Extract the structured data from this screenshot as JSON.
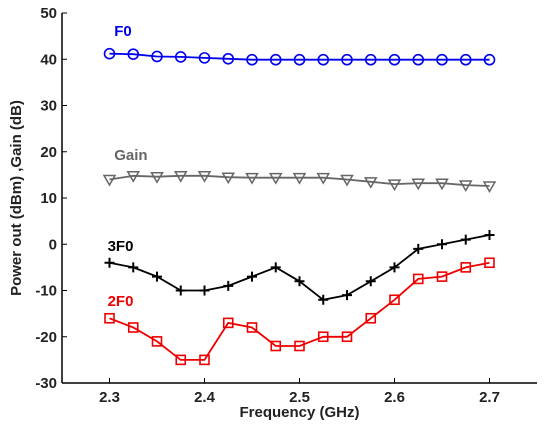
{
  "chart_data": {
    "type": "line",
    "xlabel": "Frequency (GHz)",
    "ylabel": "Power out (dBm) ,Gain (dB)",
    "xlim": [
      2.25,
      2.75
    ],
    "ylim": [
      -30,
      50
    ],
    "x_ticks": [
      "2.3",
      "2.4",
      "2.5",
      "2.6",
      "2.7"
    ],
    "y_ticks": [
      "-30",
      "-20",
      "-10",
      "0",
      "10",
      "20",
      "30",
      "40",
      "50"
    ],
    "grid": false,
    "x": [
      2.3,
      2.325,
      2.35,
      2.375,
      2.4,
      2.425,
      2.45,
      2.475,
      2.5,
      2.525,
      2.55,
      2.575,
      2.6,
      2.625,
      2.65,
      2.675,
      2.7
    ],
    "series": [
      {
        "name": "F0",
        "color": "#0000ee",
        "marker": "circle",
        "values": [
          41.2,
          41.1,
          40.6,
          40.5,
          40.3,
          40.1,
          39.9,
          39.9,
          39.9,
          39.9,
          39.9,
          39.9,
          39.9,
          39.9,
          39.9,
          39.9,
          39.9
        ],
        "label_at": [
          2.305,
          45
        ]
      },
      {
        "name": "Gain",
        "color": "#666666",
        "marker": "triangle-down",
        "values": [
          14,
          14.8,
          14.6,
          14.8,
          14.8,
          14.5,
          14.4,
          14.4,
          14.4,
          14.4,
          14.0,
          13.5,
          13.0,
          13.2,
          13.2,
          12.8,
          12.6
        ],
        "label_at": [
          2.305,
          18.2
        ]
      },
      {
        "name": "3F0",
        "color": "#000000",
        "marker": "plus",
        "values": [
          -4,
          -5,
          -7,
          -10,
          -10,
          -9,
          -7,
          -5,
          -8,
          -12,
          -11,
          -8,
          -5,
          -1,
          0,
          1,
          2
        ],
        "label_at": [
          2.298,
          -1.5
        ]
      },
      {
        "name": "2F0",
        "color": "#ee0000",
        "marker": "square",
        "values": [
          -16,
          -18,
          -21,
          -25,
          -25,
          -17,
          -18,
          -22,
          -22,
          -20,
          -20,
          -16,
          -12,
          -7.5,
          -7,
          -5,
          -4
        ],
        "label_at": [
          2.298,
          -13.3
        ]
      }
    ]
  }
}
